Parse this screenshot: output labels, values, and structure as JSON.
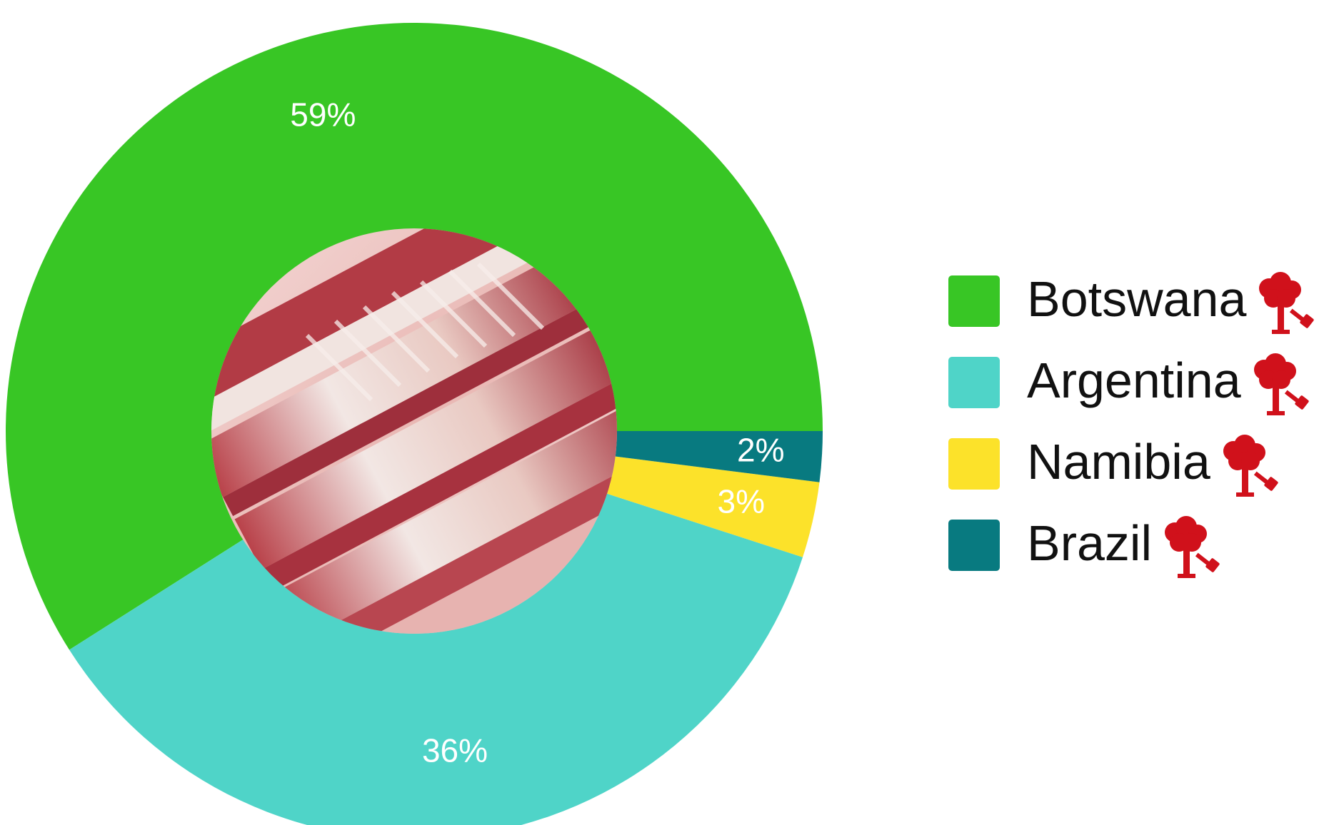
{
  "chart_data": {
    "type": "pie",
    "donut": true,
    "center_image": "raw-ribs-photo",
    "slices": [
      {
        "name": "Botswana",
        "value": 59,
        "label": "59%",
        "color": "#38c625"
      },
      {
        "name": "Argentina",
        "value": 36,
        "label": "36%",
        "color": "#4fd4c8"
      },
      {
        "name": "Namibia",
        "value": 3,
        "label": "3%",
        "color": "#fce22a"
      },
      {
        "name": "Brazil",
        "value": 2,
        "label": "2%",
        "color": "#087a80"
      }
    ],
    "legend_placement": "right",
    "legend_icon": "tree-axe-icon",
    "legend_icon_color": "#d0111b"
  }
}
